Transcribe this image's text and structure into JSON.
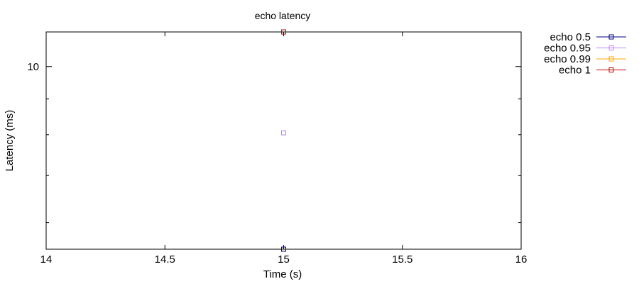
{
  "chart_data": {
    "type": "scatter",
    "title": "echo latency",
    "xlabel": "Time (s)",
    "ylabel": "Latency (ms)",
    "xlim": [
      14,
      16
    ],
    "ylim": [
      5.5,
      11.2
    ],
    "y_scale": "log",
    "x_ticks": [
      "14",
      "14.5",
      "15",
      "15.5",
      "16"
    ],
    "x_tick_values": [
      14,
      14.5,
      15,
      15.5,
      16
    ],
    "y_tick_labels": [
      "10"
    ],
    "y_tick_label_values": [
      10
    ],
    "y_minor_ticks": [
      6,
      7,
      8,
      9
    ],
    "grid": false,
    "legend_position": "outside-top-right",
    "series": [
      {
        "name": "echo 0.5",
        "color": "#00008b",
        "x": [
          15
        ],
        "y": [
          5.5
        ]
      },
      {
        "name": "echo 0.95",
        "color": "#c080ff",
        "x": [
          15
        ],
        "y": [
          8.05
        ]
      },
      {
        "name": "echo 0.99",
        "color": "#ffa500",
        "x": [
          15
        ],
        "y": [
          11.2
        ]
      },
      {
        "name": "echo 1",
        "color": "#cc0000",
        "x": [
          15
        ],
        "y": [
          11.2
        ]
      }
    ]
  }
}
